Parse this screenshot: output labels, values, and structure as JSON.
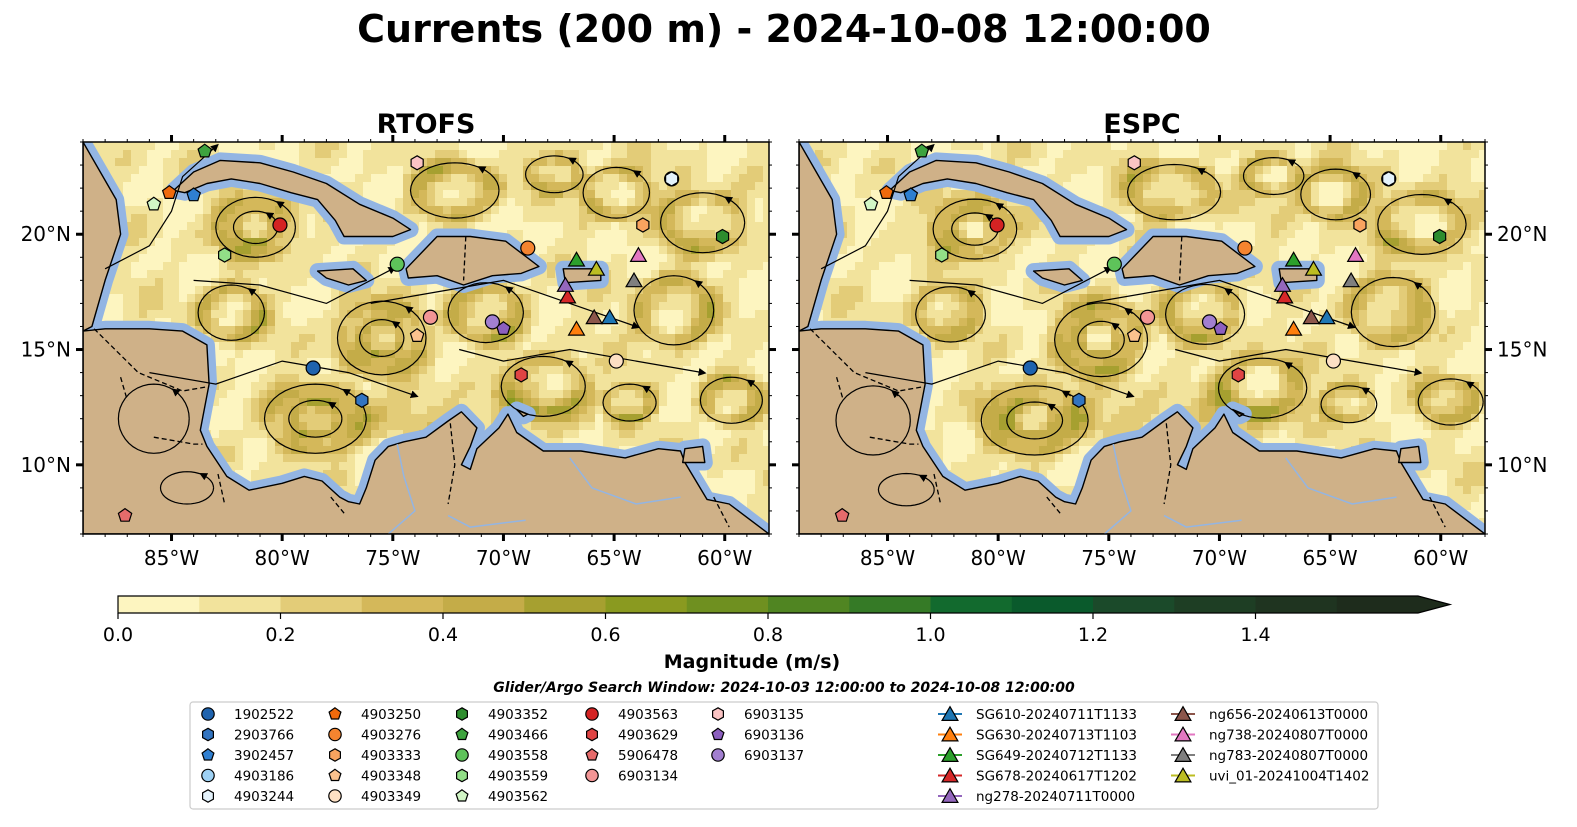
{
  "title": "Currents (200 m) - 2024-10-08 12:00:00",
  "panels": [
    {
      "id": "left",
      "title": "RTOFS"
    },
    {
      "id": "right",
      "title": "ESPC"
    }
  ],
  "map": {
    "lon_range": [
      -89,
      -58
    ],
    "lat_range": [
      7,
      24
    ],
    "lon_ticks": [
      "85°W",
      "80°W",
      "75°W",
      "70°W",
      "65°W",
      "60°W"
    ],
    "lat_ticks": [
      "20°N",
      "15°N",
      "10°N"
    ],
    "land_color": "#cfb188",
    "shallow_water_color": "#93b5e3"
  },
  "colorbar": {
    "label": "Magnitude (m/s)",
    "ticks": [
      "0.0",
      "0.2",
      "0.4",
      "0.6",
      "0.8",
      "1.0",
      "1.2",
      "1.4"
    ],
    "colors": [
      "#fdf5c0",
      "#f2e39c",
      "#e3cc78",
      "#d4b85a",
      "#c4ac48",
      "#a6a030",
      "#8a9a20",
      "#6f9020",
      "#508522",
      "#357a26",
      "#126a2e",
      "#0a5a2c",
      "#1b4a2a",
      "#1e3e24",
      "#1f3420",
      "#1e2c1c"
    ]
  },
  "search_window": "Glider/Argo Search Window: 2024-10-03 12:00:00 to 2024-10-08 12:00:00",
  "legend": [
    {
      "label": "1902522",
      "marker": "circle",
      "color": "#1f63ae"
    },
    {
      "label": "2903766",
      "marker": "hexagon",
      "color": "#3274c0"
    },
    {
      "label": "3902457",
      "marker": "pentagon",
      "color": "#2f7fd0"
    },
    {
      "label": "4903186",
      "marker": "circle",
      "color": "#9ed1f4"
    },
    {
      "label": "4903244",
      "marker": "hexagon",
      "color": "#e4f2fb"
    },
    {
      "label": "4903250",
      "marker": "pentagon",
      "color": "#f06a0c"
    },
    {
      "label": "4903276",
      "marker": "circle",
      "color": "#f5842f"
    },
    {
      "label": "4903333",
      "marker": "hexagon",
      "color": "#f9a35f"
    },
    {
      "label": "4903348",
      "marker": "pentagon",
      "color": "#fbc28e"
    },
    {
      "label": "4903349",
      "marker": "circle",
      "color": "#fde0c4"
    },
    {
      "label": "4903352",
      "marker": "hexagon",
      "color": "#2e8d2e"
    },
    {
      "label": "4903466",
      "marker": "pentagon",
      "color": "#3ea33e"
    },
    {
      "label": "4903558",
      "marker": "circle",
      "color": "#5ec35a"
    },
    {
      "label": "4903559",
      "marker": "hexagon",
      "color": "#92df87"
    },
    {
      "label": "4903562",
      "marker": "pentagon",
      "color": "#d2f6c6"
    },
    {
      "label": "4903563",
      "marker": "circle",
      "color": "#d42323"
    },
    {
      "label": "4903629",
      "marker": "hexagon",
      "color": "#e04444"
    },
    {
      "label": "5906478",
      "marker": "pentagon",
      "color": "#e66b6b"
    },
    {
      "label": "6903134",
      "marker": "circle",
      "color": "#f29595"
    },
    {
      "label": "6903135",
      "marker": "hexagon",
      "color": "#fbc4c4"
    },
    {
      "label": "6903136",
      "marker": "pentagon",
      "color": "#8c5fbf"
    },
    {
      "label": "6903137",
      "marker": "circle",
      "color": "#a27fd0"
    },
    {
      "label": "SG610-20240711T1133",
      "marker": "triangle-line",
      "color": "#1f77b4"
    },
    {
      "label": "SG630-20240713T1103",
      "marker": "triangle-line",
      "color": "#ff7f0e"
    },
    {
      "label": "SG649-20240712T1133",
      "marker": "triangle-line",
      "color": "#2ca02c"
    },
    {
      "label": "SG678-20240617T1202",
      "marker": "triangle-line",
      "color": "#d62728"
    },
    {
      "label": "ng278-20240711T0000",
      "marker": "triangle-line",
      "color": "#9467bd"
    },
    {
      "label": "ng656-20240613T0000",
      "marker": "triangle-line",
      "color": "#8c564b"
    },
    {
      "label": "ng738-20240807T0000",
      "marker": "triangle-line",
      "color": "#e377c2"
    },
    {
      "label": "ng783-20240807T0000",
      "marker": "triangle-line",
      "color": "#7f7f7f"
    },
    {
      "label": "uvi_01-20241004T1402",
      "marker": "triangle-line",
      "color": "#bcbd22"
    }
  ],
  "observations": [
    {
      "id": "1902522",
      "lon": -78.6,
      "lat": 14.2
    },
    {
      "id": "2903766",
      "lon": -76.4,
      "lat": 12.8
    },
    {
      "id": "3902457",
      "lon": -84.0,
      "lat": 21.7
    },
    {
      "id": "4903186",
      "lon": -62.4,
      "lat": 22.4
    },
    {
      "id": "4903244",
      "lon": -62.4,
      "lat": 22.4
    },
    {
      "id": "4903250",
      "lon": -85.1,
      "lat": 21.8
    },
    {
      "id": "4903276",
      "lon": -68.9,
      "lat": 19.4
    },
    {
      "id": "4903333",
      "lon": -63.7,
      "lat": 20.4
    },
    {
      "id": "4903348",
      "lon": -73.9,
      "lat": 15.6
    },
    {
      "id": "4903349",
      "lon": -64.9,
      "lat": 14.5
    },
    {
      "id": "4903352",
      "lon": -60.1,
      "lat": 19.9
    },
    {
      "id": "4903466",
      "lon": -83.5,
      "lat": 23.6
    },
    {
      "id": "4903558",
      "lon": -74.8,
      "lat": 18.7
    },
    {
      "id": "4903559",
      "lon": -82.6,
      "lat": 19.1
    },
    {
      "id": "4903562",
      "lon": -85.8,
      "lat": 21.3
    },
    {
      "id": "4903563",
      "lon": -80.1,
      "lat": 20.4
    },
    {
      "id": "4903629",
      "lon": -69.2,
      "lat": 13.9
    },
    {
      "id": "5906478",
      "lon": -87.1,
      "lat": 7.8
    },
    {
      "id": "6903134",
      "lon": -73.3,
      "lat": 16.4
    },
    {
      "id": "6903135",
      "lon": -73.9,
      "lat": 23.1
    },
    {
      "id": "6903136",
      "lon": -70.0,
      "lat": 15.9
    },
    {
      "id": "6903137",
      "lon": -70.5,
      "lat": 16.2
    },
    {
      "id": "SG610-20240711T1133",
      "lon": -65.2,
      "lat": 16.4
    },
    {
      "id": "SG630-20240713T1103",
      "lon": -66.7,
      "lat": 15.9
    },
    {
      "id": "SG649-20240712T1133",
      "lon": -66.7,
      "lat": 18.9
    },
    {
      "id": "SG678-20240617T1202",
      "lon": -67.1,
      "lat": 17.3
    },
    {
      "id": "ng278-20240711T0000",
      "lon": -67.2,
      "lat": 17.8
    },
    {
      "id": "ng656-20240613T0000",
      "lon": -65.9,
      "lat": 16.4
    },
    {
      "id": "ng738-20240807T0000",
      "lon": -63.9,
      "lat": 19.1
    },
    {
      "id": "ng783-20240807T0000",
      "lon": -64.1,
      "lat": 18.0
    },
    {
      "id": "uvi_01-20241004T1402",
      "lon": -65.8,
      "lat": 18.5
    }
  ]
}
